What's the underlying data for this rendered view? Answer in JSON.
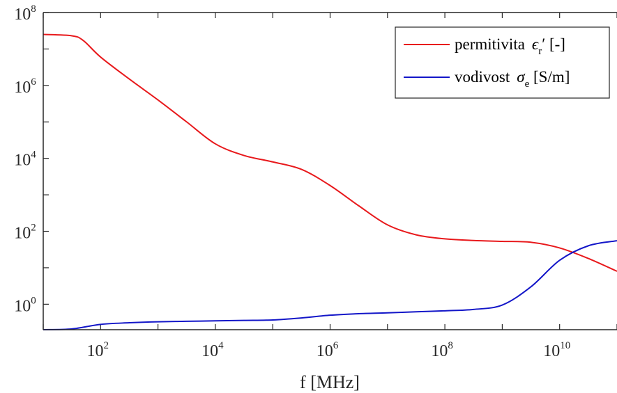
{
  "chart_data": {
    "type": "line",
    "xlabel": "f [MHz]",
    "x_scale": "log",
    "y_scale": "log",
    "xlim": [
      10,
      100000000000
    ],
    "ylim": [
      0.2,
      100000000
    ],
    "x_ticks": [
      {
        "base": "10",
        "exp": "2",
        "value": 100
      },
      {
        "base": "10",
        "exp": "4",
        "value": 10000
      },
      {
        "base": "10",
        "exp": "6",
        "value": 1000000
      },
      {
        "base": "10",
        "exp": "8",
        "value": 100000000
      },
      {
        "base": "10",
        "exp": "10",
        "value": 10000000000
      }
    ],
    "y_ticks": [
      {
        "base": "10",
        "exp": "0",
        "value": 1
      },
      {
        "base": "10",
        "exp": "2",
        "value": 100
      },
      {
        "base": "10",
        "exp": "4",
        "value": 10000
      },
      {
        "base": "10",
        "exp": "6",
        "value": 1000000
      },
      {
        "base": "10",
        "exp": "8",
        "value": 100000000
      }
    ],
    "grid": false,
    "legend_position": "top-right",
    "series": [
      {
        "legend_prefix": "permitivita",
        "legend_symbol": "ϵ",
        "legend_sub": "r",
        "legend_suffix": "′ [-]",
        "color": "#e8191c",
        "x": [
          10,
          31.6,
          50,
          100,
          316,
          1000,
          3160,
          10000,
          31600,
          100000,
          316000,
          1000000,
          3160000,
          10000000,
          31600000,
          100000000,
          316000000,
          1000000000,
          3160000000,
          10000000000,
          31600000000,
          100000000000
        ],
        "y": [
          25000000,
          23000000,
          17000000,
          6000000,
          1500000,
          400000,
          100000,
          25000,
          12000,
          8000,
          5000,
          1800,
          500,
          150,
          80,
          62,
          56,
          53,
          50,
          35,
          18,
          8
        ]
      },
      {
        "legend_prefix": "vodivost",
        "legend_symbol": "σ",
        "legend_sub": "e",
        "legend_suffix": " [S/m]",
        "color": "#1316c8",
        "x": [
          10,
          31.6,
          100,
          316,
          1000,
          3160,
          10000,
          31600,
          100000,
          316000,
          1000000,
          3160000,
          10000000,
          31600000,
          100000000,
          316000000,
          1000000000,
          3160000000,
          10000000000,
          31600000000,
          100000000000
        ],
        "y": [
          0.2,
          0.21,
          0.28,
          0.31,
          0.33,
          0.34,
          0.35,
          0.36,
          0.37,
          0.42,
          0.5,
          0.55,
          0.58,
          0.62,
          0.66,
          0.72,
          0.95,
          3,
          16,
          40,
          55
        ]
      }
    ]
  }
}
